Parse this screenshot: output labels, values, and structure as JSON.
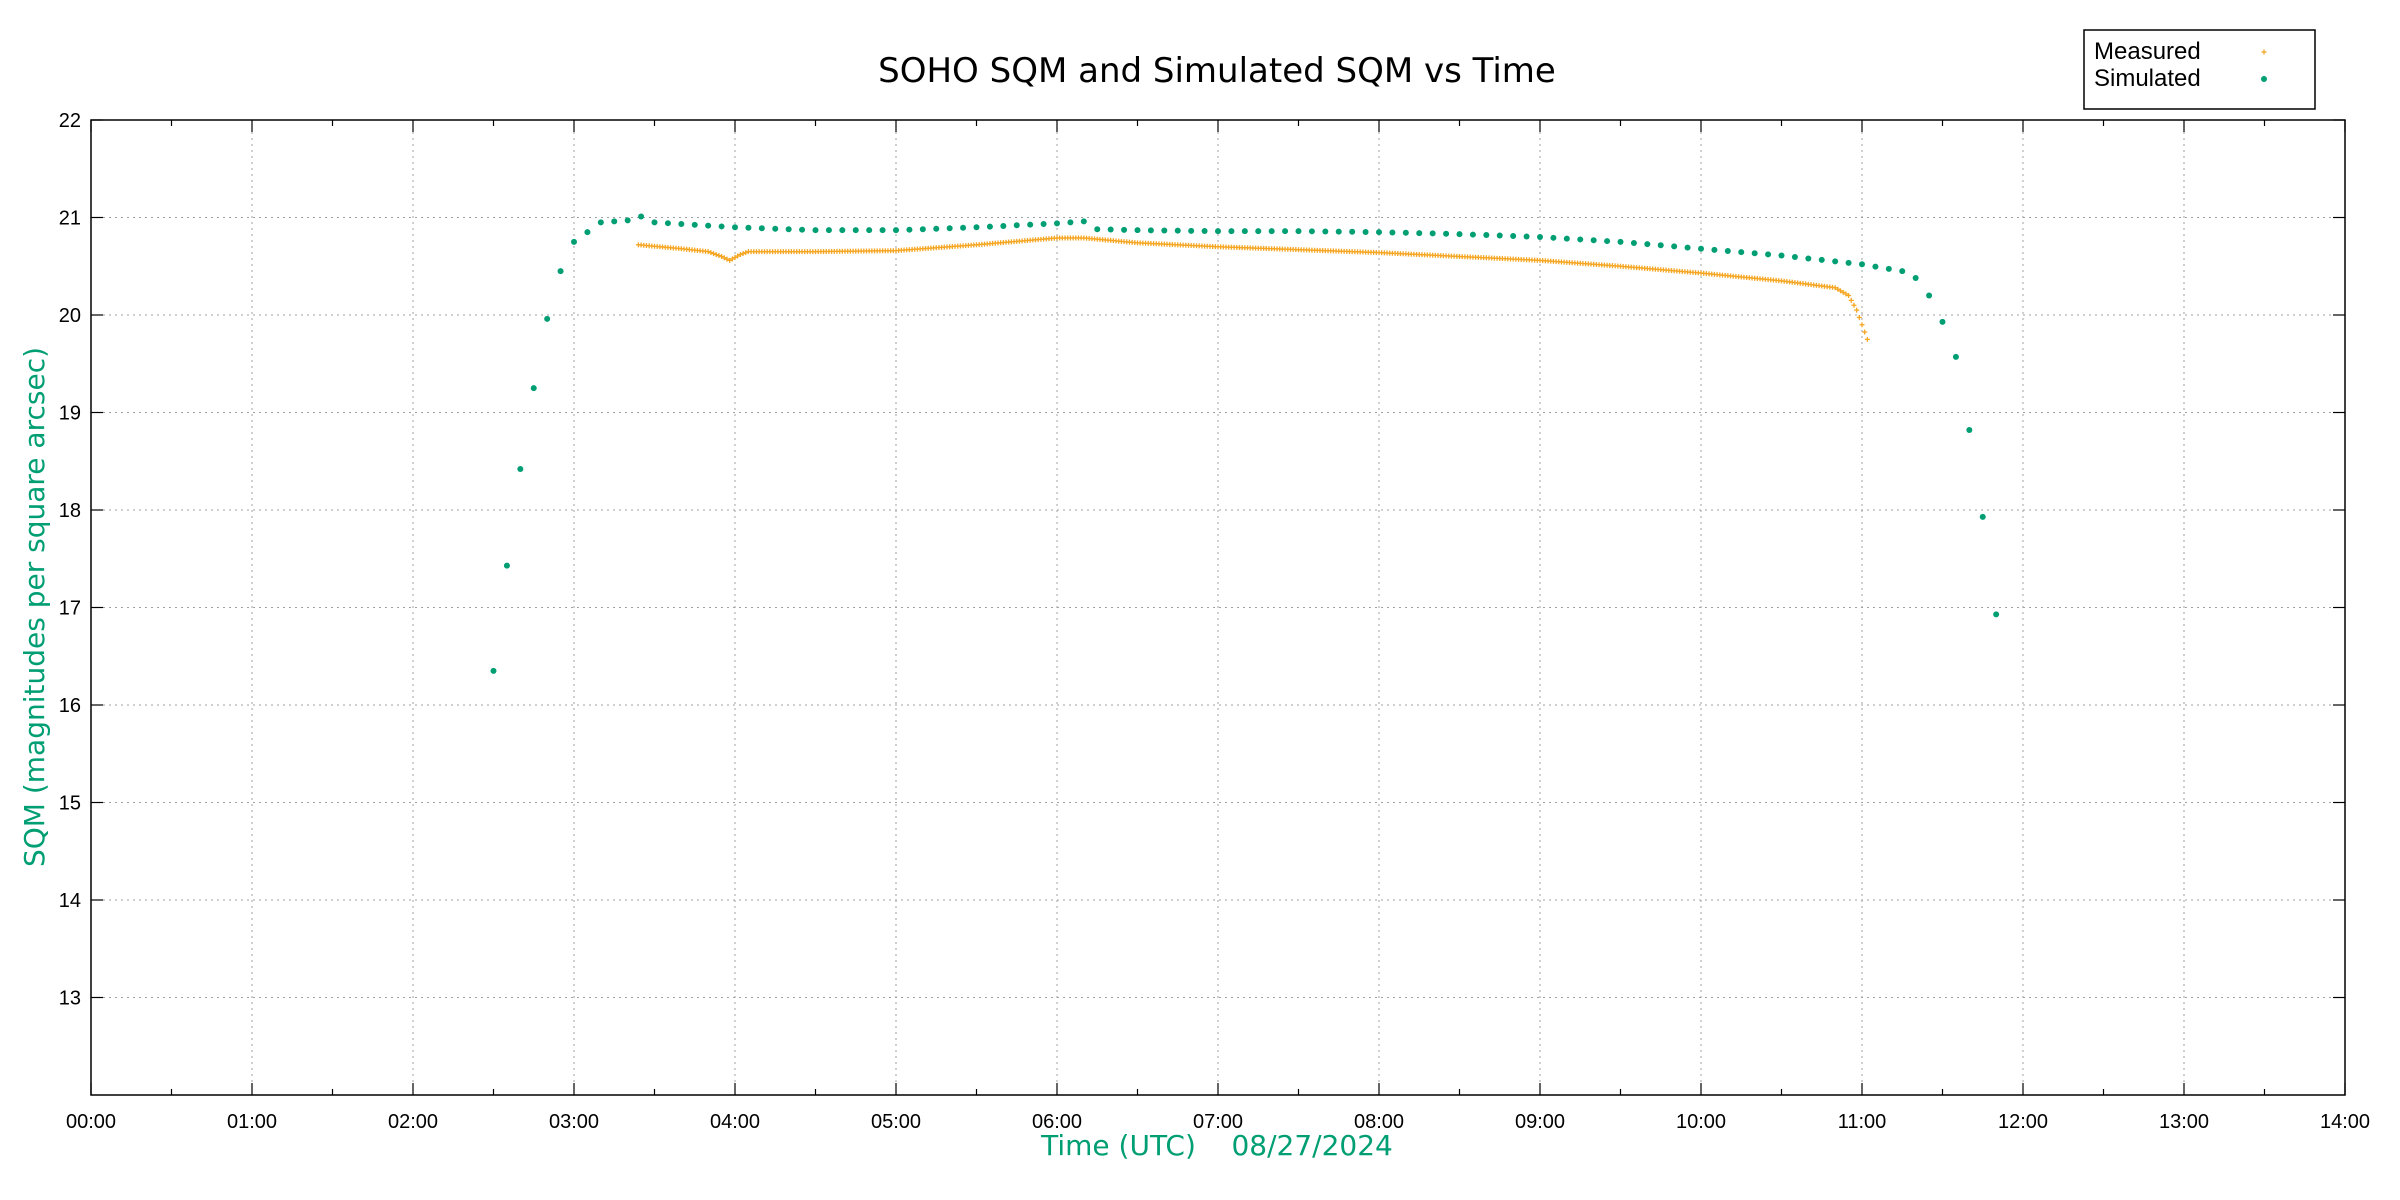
{
  "chart_data": {
    "type": "scatter",
    "title": "SOHO SQM and Simulated SQM vs Time",
    "xlabel": "Time (UTC)    08/27/2024",
    "ylabel": "SQM (magnitudes per square arcsec)",
    "xlim": [
      "00:00",
      "14:00"
    ],
    "ylim": [
      12,
      22
    ],
    "x_ticks": [
      "00:00",
      "01:00",
      "02:00",
      "03:00",
      "04:00",
      "05:00",
      "06:00",
      "07:00",
      "08:00",
      "09:00",
      "10:00",
      "11:00",
      "12:00",
      "13:00",
      "14:00"
    ],
    "y_ticks": [
      13,
      14,
      15,
      16,
      17,
      18,
      19,
      20,
      21,
      22
    ],
    "grid": true,
    "legend_position": "top-right",
    "colors": {
      "measured": "#f5a623",
      "simulated": "#009e73",
      "ylabel": "#009e73",
      "xlabel": "#009e73"
    },
    "series": [
      {
        "name": "Measured",
        "marker": "plus",
        "color": "#f5a623",
        "points": [
          [
            "03:24",
            20.72
          ],
          [
            "03:40",
            20.68
          ],
          [
            "03:50",
            20.65
          ],
          [
            "03:55",
            20.6
          ],
          [
            "03:58",
            20.56
          ],
          [
            "04:02",
            20.62
          ],
          [
            "04:05",
            20.65
          ],
          [
            "04:30",
            20.65
          ],
          [
            "05:00",
            20.66
          ],
          [
            "05:30",
            20.72
          ],
          [
            "06:00",
            20.79
          ],
          [
            "06:10",
            20.79
          ],
          [
            "06:30",
            20.74
          ],
          [
            "07:00",
            20.7
          ],
          [
            "07:30",
            20.67
          ],
          [
            "08:00",
            20.64
          ],
          [
            "08:30",
            20.6
          ],
          [
            "09:00",
            20.56
          ],
          [
            "09:30",
            20.5
          ],
          [
            "10:00",
            20.43
          ],
          [
            "10:30",
            20.35
          ],
          [
            "10:50",
            20.28
          ],
          [
            "10:55",
            20.2
          ],
          [
            "10:58",
            20.05
          ],
          [
            "11:00",
            19.9
          ],
          [
            "11:02",
            19.75
          ]
        ]
      },
      {
        "name": "Simulated",
        "marker": "dot",
        "color": "#009e73",
        "points": [
          [
            "02:30",
            16.35
          ],
          [
            "02:35",
            17.43
          ],
          [
            "02:40",
            18.42
          ],
          [
            "02:45",
            19.25
          ],
          [
            "02:50",
            19.96
          ],
          [
            "02:55",
            20.45
          ],
          [
            "03:00",
            20.75
          ],
          [
            "03:10",
            20.95
          ],
          [
            "03:20",
            20.97
          ],
          [
            "03:25",
            21.01
          ],
          [
            "03:30",
            20.95
          ],
          [
            "04:00",
            20.9
          ],
          [
            "04:30",
            20.87
          ],
          [
            "05:00",
            20.87
          ],
          [
            "05:30",
            20.9
          ],
          [
            "06:00",
            20.94
          ],
          [
            "06:10",
            20.96
          ],
          [
            "06:15",
            20.88
          ],
          [
            "06:30",
            20.87
          ],
          [
            "07:00",
            20.86
          ],
          [
            "07:30",
            20.86
          ],
          [
            "08:00",
            20.85
          ],
          [
            "08:30",
            20.83
          ],
          [
            "09:00",
            20.8
          ],
          [
            "09:30",
            20.75
          ],
          [
            "10:00",
            20.68
          ],
          [
            "10:30",
            20.61
          ],
          [
            "11:00",
            20.52
          ],
          [
            "11:15",
            20.45
          ],
          [
            "11:20",
            20.38
          ],
          [
            "11:25",
            20.2
          ],
          [
            "11:30",
            19.93
          ],
          [
            "11:35",
            19.57
          ],
          [
            "11:40",
            18.82
          ],
          [
            "11:45",
            17.93
          ],
          [
            "11:50",
            16.93
          ]
        ]
      }
    ]
  }
}
